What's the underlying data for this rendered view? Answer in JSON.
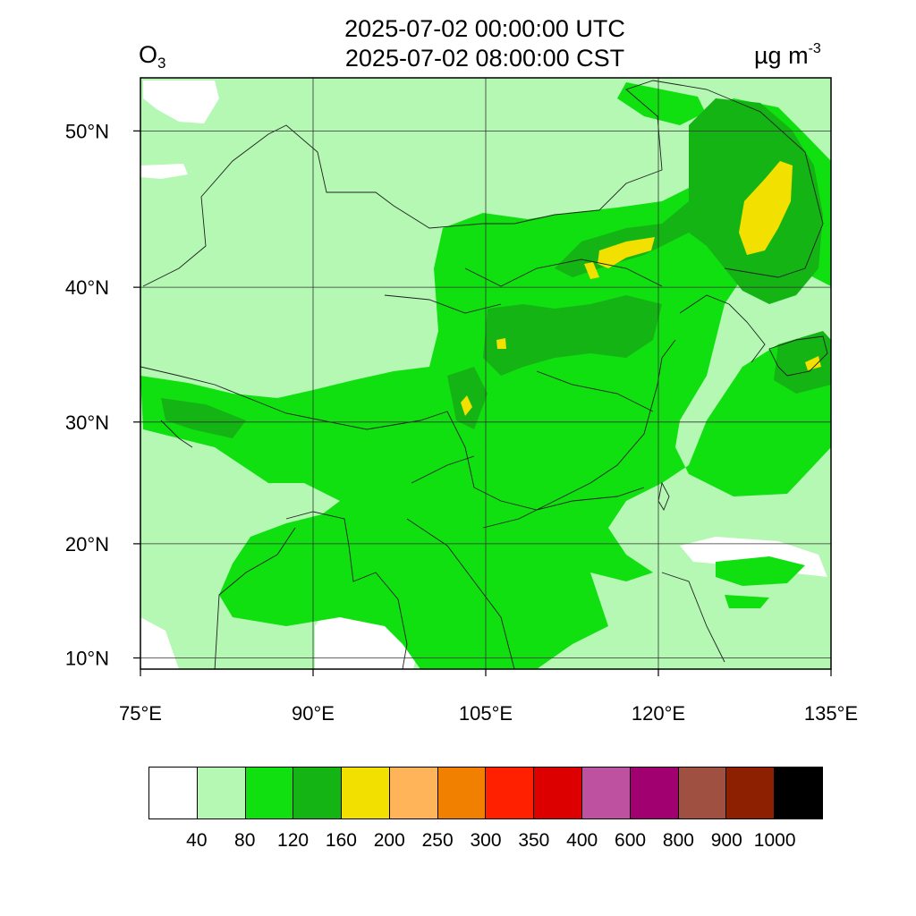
{
  "title": {
    "line1": "2025-07-02 00:00:00 UTC",
    "line2": "2025-07-02 08:00:00 CST"
  },
  "variable": {
    "name": "O",
    "subscript": "3"
  },
  "units": {
    "base": "µg m",
    "exponent": "-3"
  },
  "map": {
    "lon_range": [
      75,
      135
    ],
    "lat_range": [
      9,
      53
    ],
    "lon_ticks": [
      "75°E",
      "90°E",
      "105°E",
      "120°E",
      "135°E"
    ],
    "lat_ticks": [
      "10°N",
      "20°N",
      "30°N",
      "40°N",
      "50°N"
    ],
    "grid": true
  },
  "colorbar": {
    "colors": [
      "#ffffff",
      "#b4f8b4",
      "#10e010",
      "#14b414",
      "#f2e000",
      "#ffb45a",
      "#f28000",
      "#ff2000",
      "#dc0000",
      "#bf52a0",
      "#a00070",
      "#a05040",
      "#8c2000",
      "#000000"
    ],
    "labels": [
      "40",
      "80",
      "120",
      "160",
      "200",
      "250",
      "300",
      "350",
      "400",
      "600",
      "800",
      "900",
      "1000"
    ]
  }
}
